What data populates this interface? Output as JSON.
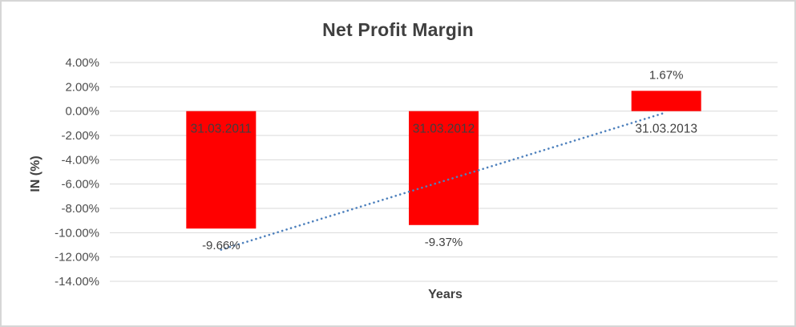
{
  "chart_data": {
    "type": "bar",
    "title": "Net Profit Margin",
    "xlabel": "Years",
    "ylabel": "IN (%)",
    "categories": [
      "31.03.2011",
      "31.03.2012",
      "31.03.2013"
    ],
    "values": [
      -9.66,
      -9.37,
      1.67
    ],
    "value_labels": [
      "-9.66%",
      "-9.37%",
      "1.67%"
    ],
    "ylim": [
      -14,
      4
    ],
    "ytick_step": 2,
    "ytick_labels": [
      "4.00%",
      "2.00%",
      "0.00%",
      "-2.00%",
      "-4.00%",
      "-6.00%",
      "-8.00%",
      "-10.00%",
      "-12.00%",
      "-14.00%"
    ],
    "grid": true,
    "legend": "none",
    "bar_color": "#FF0000",
    "trendline": {
      "type": "linear",
      "style": "dotted",
      "color": "#4E81BD",
      "start_value": -11.4,
      "end_value": -0.1
    },
    "colors": {
      "gridline": "#D9D9D9",
      "tick_text": "#4D4D4D",
      "label_text": "#3F3F3F",
      "chart_border": "#D6D6D6"
    }
  }
}
